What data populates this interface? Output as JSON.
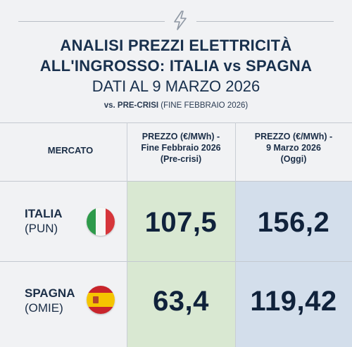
{
  "header": {
    "title_line1": "ANALISI PREZZI ELETTRICITÀ",
    "title_line2": "ALL'INGROSSO: ITALIA vs SPAGNA",
    "subtitle": "DATI AL 9 MARZO 2026",
    "note_bold": "vs. PRE-CRISI",
    "note_rest": " (FINE FEBBRAIO 2026)"
  },
  "table": {
    "col_market": "MERCATO",
    "col_pre_line1": "PREZZO (€/MWh) -",
    "col_pre_line2": "Fine Febbraio 2026",
    "col_pre_line3": "(Pre-crisi)",
    "col_now_line1": "PREZZO (€/MWh) -",
    "col_now_line2": "9 Marzo 2026",
    "col_now_line3": "(Oggi)",
    "rows": [
      {
        "name": "ITALIA",
        "sub": "(PUN)",
        "pre": "107,5",
        "now": "156,2",
        "flag": "italy-flag-icon"
      },
      {
        "name": "SPAGNA",
        "sub": "(OMIE)",
        "pre": "63,4",
        "now": "119,42",
        "flag": "spain-flag-icon"
      }
    ]
  },
  "colors": {
    "pre_column": "#d9e8d2",
    "now_column": "#d3deeb",
    "text": "#142a44"
  }
}
